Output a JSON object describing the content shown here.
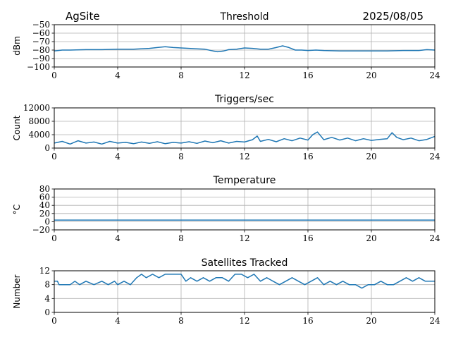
{
  "header": {
    "site": "AgSite",
    "date": "2025/08/05"
  },
  "colors": {
    "line": "#1f77b4",
    "grid": "#b0b0b0",
    "axis": "#000000"
  },
  "chart_data": [
    {
      "type": "line",
      "title": "Threshold",
      "ylabel": "dBm",
      "xlim": [
        0,
        24
      ],
      "ylim": [
        -100,
        -50
      ],
      "x_ticks": [
        0,
        4,
        8,
        12,
        16,
        20,
        24
      ],
      "y_ticks": [
        -100,
        -90,
        -80,
        -70,
        -60,
        -50
      ],
      "y_tick_labels": [
        "−100",
        "−90",
        "−80",
        "−70",
        "−60",
        "−50"
      ],
      "grid": true,
      "series": [
        {
          "x": [
            0,
            0.5,
            1,
            2,
            3,
            4,
            5,
            6,
            6.5,
            7,
            7.5,
            8,
            8.5,
            9,
            9.5,
            10,
            10.3,
            10.7,
            11,
            11.5,
            12,
            12.5,
            13,
            13.5,
            14,
            14.4,
            14.8,
            15.2,
            15.6,
            16,
            16.5,
            17,
            18,
            19,
            20,
            21,
            22,
            23,
            23.5,
            24
          ],
          "y": [
            -81,
            -80,
            -80,
            -79.5,
            -79.5,
            -79,
            -79,
            -78,
            -77,
            -76,
            -77,
            -77.5,
            -78,
            -78.5,
            -79,
            -81,
            -82,
            -81,
            -79.5,
            -79,
            -77.5,
            -78,
            -79,
            -79,
            -77,
            -75,
            -77,
            -80,
            -80,
            -80.5,
            -80,
            -80.5,
            -81,
            -81,
            -81,
            -81,
            -80.5,
            -80.5,
            -79.5,
            -80
          ]
        }
      ]
    },
    {
      "type": "line",
      "title": "Triggers/sec",
      "ylabel": "Count",
      "xlim": [
        0,
        24
      ],
      "ylim": [
        0,
        12000
      ],
      "x_ticks": [
        0,
        4,
        8,
        12,
        16,
        20,
        24
      ],
      "y_ticks": [
        0,
        4000,
        8000,
        12000
      ],
      "y_tick_labels": [
        "0",
        "4000",
        "8000",
        "12000"
      ],
      "grid": true,
      "series": [
        {
          "x": [
            0,
            0.5,
            1,
            1.5,
            2,
            2.5,
            3,
            3.5,
            4,
            4.5,
            5,
            5.5,
            6,
            6.5,
            7,
            7.5,
            8,
            8.5,
            9,
            9.5,
            10,
            10.5,
            11,
            11.5,
            12,
            12.5,
            12.8,
            13,
            13.5,
            14,
            14.5,
            15,
            15.5,
            16,
            16.3,
            16.6,
            17,
            17.5,
            18,
            18.5,
            19,
            19.5,
            20,
            20.5,
            21,
            21.3,
            21.6,
            22,
            22.5,
            23,
            23.5,
            24
          ],
          "y": [
            1500,
            2000,
            1200,
            2200,
            1500,
            1800,
            1200,
            2000,
            1500,
            1700,
            1300,
            1800,
            1400,
            1900,
            1300,
            1700,
            1500,
            1900,
            1400,
            2100,
            1600,
            2200,
            1500,
            2000,
            1800,
            2500,
            3600,
            2000,
            2600,
            1900,
            2800,
            2200,
            3000,
            2400,
            4000,
            4800,
            2500,
            3200,
            2400,
            3000,
            2200,
            2800,
            2300,
            2600,
            2800,
            4600,
            3200,
            2500,
            3000,
            2200,
            2600,
            3500
          ]
        }
      ]
    },
    {
      "type": "line",
      "title": "Temperature",
      "ylabel": "°C",
      "xlim": [
        0,
        24
      ],
      "ylim": [
        -20,
        80
      ],
      "x_ticks": [
        0,
        4,
        8,
        12,
        16,
        20,
        24
      ],
      "y_ticks": [
        -20,
        0,
        20,
        40,
        60,
        80
      ],
      "y_tick_labels": [
        "−20",
        "0",
        "20",
        "40",
        "60",
        "80"
      ],
      "grid": true,
      "series": [
        {
          "x": [
            0,
            24
          ],
          "y": [
            4,
            4
          ]
        }
      ]
    },
    {
      "type": "line",
      "title": "Satellites Tracked",
      "ylabel": "Number",
      "xlim": [
        0,
        24
      ],
      "ylim": [
        0,
        12
      ],
      "x_ticks": [
        0,
        4,
        8,
        12,
        16,
        20,
        24
      ],
      "y_ticks": [
        0,
        4,
        8,
        12
      ],
      "y_tick_labels": [
        "0",
        "4",
        "8",
        "12"
      ],
      "grid": true,
      "series": [
        {
          "x": [
            0,
            0.2,
            0.3,
            1,
            1.3,
            1.6,
            2,
            2.5,
            3,
            3.4,
            3.8,
            4,
            4.4,
            4.8,
            5.2,
            5.5,
            5.8,
            6.2,
            6.6,
            7,
            7.4,
            7.8,
            8,
            8.3,
            8.6,
            9,
            9.4,
            9.8,
            10.2,
            10.6,
            11,
            11.4,
            11.8,
            12.2,
            12.6,
            13,
            13.4,
            13.8,
            14.2,
            14.6,
            15,
            15.4,
            15.8,
            16.2,
            16.6,
            17,
            17.4,
            17.8,
            18.2,
            18.6,
            19,
            19.4,
            19.8,
            20.2,
            20.6,
            21,
            21.4,
            21.8,
            22.2,
            22.6,
            23,
            23.4,
            23.8,
            24
          ],
          "y": [
            9,
            9,
            8,
            8,
            9,
            8,
            9,
            8,
            9,
            8,
            9,
            8,
            9,
            8,
            10,
            11,
            10,
            11,
            10,
            11,
            11,
            11,
            11,
            9,
            10,
            9,
            10,
            9,
            10,
            10,
            9,
            11,
            11,
            10,
            11,
            9,
            10,
            9,
            8,
            9,
            10,
            9,
            8,
            9,
            10,
            8,
            9,
            8,
            9,
            8,
            8,
            7,
            8,
            8,
            9,
            8,
            8,
            9,
            10,
            9,
            10,
            9,
            9,
            9
          ]
        }
      ]
    }
  ]
}
